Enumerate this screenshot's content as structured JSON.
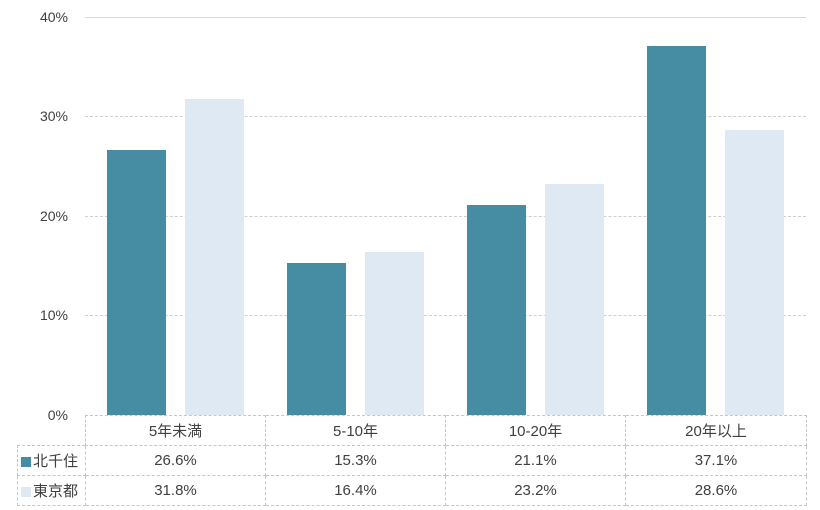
{
  "chart_data": {
    "type": "bar",
    "title": "",
    "xlabel": "",
    "ylabel": "",
    "categories": [
      "5年未満",
      "5-10年",
      "10-20年",
      "20年以上"
    ],
    "series": [
      {
        "name": "北千住",
        "color": "#468CA2",
        "values": [
          26.6,
          15.3,
          21.1,
          37.1
        ]
      },
      {
        "name": "東京都",
        "color": "#DEE9F4",
        "values": [
          31.8,
          16.4,
          23.2,
          28.6
        ]
      }
    ],
    "ylim": [
      0,
      40
    ],
    "yticks": [
      "40%",
      "30%",
      "20%",
      "10%",
      "0%"
    ],
    "grid": "horizontal-dashed",
    "legend_position": "table-left-column"
  },
  "table": {
    "rows": [
      {
        "label": "北千住",
        "values": [
          "26.6%",
          "15.3%",
          "21.1%",
          "37.1%"
        ]
      },
      {
        "label": "東京都",
        "values": [
          "31.8%",
          "16.4%",
          "23.2%",
          "28.6%"
        ]
      }
    ]
  },
  "colors": {
    "series_dark": "#468CA2",
    "series_light": "#DEE9F4",
    "gridline": "#D9D9D9",
    "text": "#404040",
    "table_border": "#C6C6C6"
  }
}
